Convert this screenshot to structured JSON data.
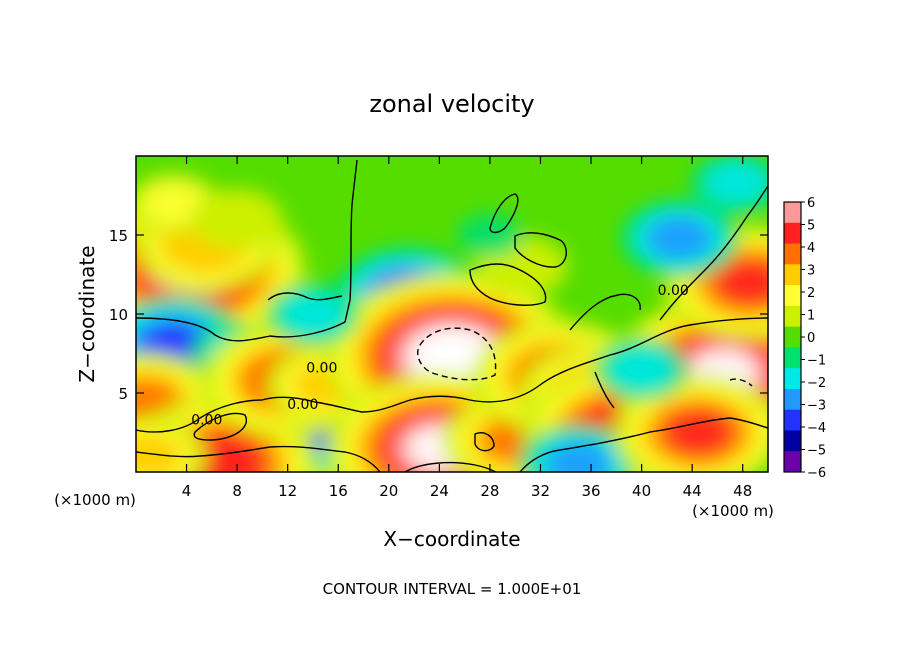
{
  "chart_data": {
    "type": "heatmap",
    "title": "zonal velocity",
    "xlabel": "X−coordinate",
    "ylabel": "Z−coordinate",
    "x_units_left": "(×1000 m)",
    "x_units_right": "(×1000 m)",
    "footer": "CONTOUR INTERVAL = 1.000E+01",
    "xlim": [
      0,
      50
    ],
    "ylim": [
      0,
      20
    ],
    "x_ticks": [
      4,
      8,
      12,
      16,
      20,
      24,
      28,
      32,
      36,
      40,
      44,
      48
    ],
    "y_ticks": [
      5,
      10,
      15
    ],
    "colorbar": {
      "min": -6,
      "max": 6,
      "ticks": [
        "6",
        "5",
        "4",
        "3",
        "2",
        "1",
        "0",
        "−1",
        "−2",
        "−3",
        "−4",
        "−5",
        "−6"
      ],
      "colors": [
        "#ff9999",
        "#ff2020",
        "#ff7000",
        "#ffcc00",
        "#ffff33",
        "#ccf000",
        "#55dd00",
        "#00e070",
        "#00e8e8",
        "#2299ff",
        "#2233ff",
        "#0000a0",
        "#6a00a8"
      ]
    },
    "contour_labels": [
      {
        "text": "0.00",
        "x": 14.7,
        "y": 6.3
      },
      {
        "text": "0.00",
        "x": 13.2,
        "y": 4.0
      },
      {
        "text": "0.00",
        "x": 5.6,
        "y": 3.0
      },
      {
        "text": "0.00",
        "x": 42.5,
        "y": 11.2
      }
    ],
    "features": [
      {
        "x": 4.5,
        "y": 12.8,
        "v": 6.8
      },
      {
        "x": 5.5,
        "y": 14.5,
        "v": 3.5
      },
      {
        "x": 3.0,
        "y": 17.0,
        "v": 2.0
      },
      {
        "x": 8.0,
        "y": 16.0,
        "v": 1.6
      },
      {
        "x": 3.0,
        "y": 8.0,
        "v": -3.5
      },
      {
        "x": 8.0,
        "y": 7.5,
        "v": -2.0
      },
      {
        "x": 0.8,
        "y": 4.5,
        "v": 4.0
      },
      {
        "x": 12.5,
        "y": 3.0,
        "v": 5.5
      },
      {
        "x": 14.0,
        "y": 3.0,
        "v": -3.8
      },
      {
        "x": 6.5,
        "y": 0.5,
        "v": 5.5
      },
      {
        "x": 12.0,
        "y": 5.8,
        "v": 4.5
      },
      {
        "x": 15.0,
        "y": 5.5,
        "v": 3.0
      },
      {
        "x": 21.5,
        "y": 11.2,
        "v": -3.5
      },
      {
        "x": 19.5,
        "y": 8.5,
        "v": -2.0
      },
      {
        "x": 25.0,
        "y": 7.3,
        "v": 7.5
      },
      {
        "x": 24.0,
        "y": 1.5,
        "v": 6.5
      },
      {
        "x": 30.0,
        "y": 2.0,
        "v": 4.0
      },
      {
        "x": 33.5,
        "y": 6.0,
        "v": 4.5
      },
      {
        "x": 36.0,
        "y": 5.0,
        "v": 3.5
      },
      {
        "x": 38.5,
        "y": 2.5,
        "v": 5.5
      },
      {
        "x": 35.0,
        "y": 0.5,
        "v": -3.0
      },
      {
        "x": 46.5,
        "y": 6.3,
        "v": 6.8
      },
      {
        "x": 48.5,
        "y": 12.0,
        "v": 5.0
      },
      {
        "x": 44.5,
        "y": 2.5,
        "v": 5.0
      },
      {
        "x": 40.0,
        "y": 6.5,
        "v": -1.8
      },
      {
        "x": 43.0,
        "y": 14.8,
        "v": -2.8
      },
      {
        "x": 47.5,
        "y": 18.3,
        "v": -2.0
      },
      {
        "x": 30.5,
        "y": 13.0,
        "v": 1.8
      },
      {
        "x": 28.0,
        "y": 15.0,
        "v": -0.8
      },
      {
        "x": 14.0,
        "y": 10.0,
        "v": -1.3
      },
      {
        "x": 1.0,
        "y": 1.0,
        "v": 3.0
      }
    ]
  }
}
